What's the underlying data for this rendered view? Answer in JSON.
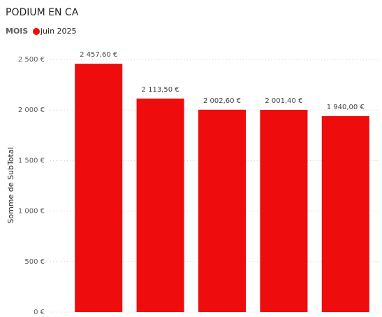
{
  "chart_data": {
    "type": "bar",
    "title": "PODIUM EN CA",
    "legend_title": "MOIS",
    "y_label": "Somme de SubTotal",
    "categories": [
      null,
      null,
      null,
      null,
      null
    ],
    "series": [
      {
        "name": "juin 2025",
        "color": "#ee0c0c",
        "values": [
          2457.6,
          2113.5,
          2002.6,
          2001.4,
          1940
        ],
        "value_labels": [
          "2 457,60 €",
          "2 113,50 €",
          "2 002,60 €",
          "2 001,40 €",
          "1 940,00 €"
        ]
      }
    ],
    "ylim": [
      0,
      2500
    ],
    "yticks": [
      {
        "value": 0,
        "label": "0 €"
      },
      {
        "value": 500,
        "label": "500 €"
      },
      {
        "value": 1000,
        "label": "1 000 €"
      },
      {
        "value": 1500,
        "label": "1 500 €"
      },
      {
        "value": 2000,
        "label": "2 000 €"
      },
      {
        "value": 2500,
        "label": "2 500 €"
      }
    ],
    "grid": true
  }
}
